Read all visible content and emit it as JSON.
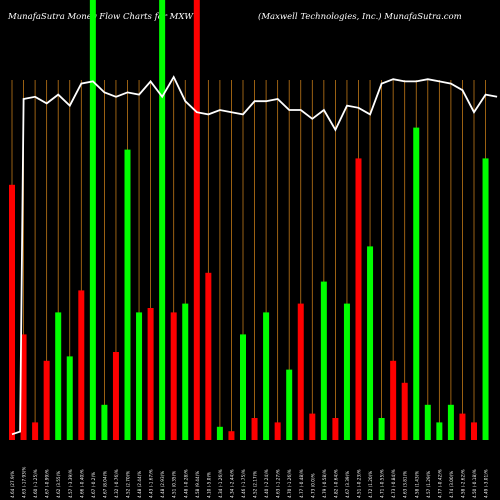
{
  "header": {
    "left": "MunafaSutra  Money Flow  Charts for MXW",
    "right": "(Maxwell Technologies, Inc.) MunafaSutra.com"
  },
  "chart_data": {
    "type": "bar",
    "title": "MunafaSutra Money Flow Charts for MXW",
    "subtitle": "(Maxwell Technologies, Inc.) MunafaSutra.com",
    "grid": true,
    "ylim": [
      0,
      100
    ],
    "categories": [
      "4.64 (27.9)%",
      "4.63 (-17.93)%",
      "4.60 (-1.25)%",
      "4.67 (-0.99)%",
      "4.62 (3.55)%",
      "4.57 (-3.39)%",
      "4.66 (-0.40)%",
      "4.67 (-0.2)%",
      "4.67 (8.04)%",
      "4.32 (-0.76)%",
      "4.52 (2.70)%",
      "4.48 (2.44)%",
      "4.43 (-1.67)%",
      "4.48 (2.93)%",
      "4.51 (0.35)%",
      "4.48 (-0.28)%",
      "4.58 (9.44)%",
      "4.10 (-5.0)%",
      "4.34 (-1.26)%",
      "4.34 (-2.44)%",
      "4.46 (-1.75)%",
      "4.52 (2.17)%",
      "4.40 (-2.24)%",
      "4.63 (-1.27)%",
      "4.70 (-1.26)%",
      "4.77 (-0.48)%",
      "4.73 (0.0)%",
      "4.79 (-0.58)%",
      "4.82 (-0.64)%",
      "4.67 (3.39)%",
      "4.51 (-0.23)%",
      "4.72 (1.20)%",
      "4.71 (-0.55)%",
      "4.73 (-0.84)%",
      "4.63 (3.81)%",
      "4.58 (1.43)%",
      "4.57 (1.29)%",
      "4.77 (-0.42)%",
      "4.74 (3.00)%",
      "4.58 (-2.62)%",
      "4.50 (-0.18)%",
      "4.49 (-3.01)%"
    ],
    "values": [
      58,
      24,
      4,
      18,
      29,
      19,
      34,
      100,
      8,
      20,
      66,
      29,
      30,
      100,
      29,
      31,
      100,
      38,
      3,
      2,
      24,
      5,
      29,
      4,
      16,
      31,
      6,
      36,
      5,
      31,
      64,
      44,
      5,
      18,
      13,
      71,
      8,
      4,
      8,
      6,
      4,
      64
    ],
    "signs": [
      "-",
      "-",
      "-",
      "-",
      "+",
      "+",
      "-",
      "+",
      "+",
      "-",
      "+",
      "+",
      "-",
      "+",
      "-",
      "+",
      "-",
      "-",
      "+",
      "-",
      "+",
      "-",
      "+",
      "-",
      "+",
      "-",
      "-",
      "+",
      "-",
      "+",
      "-",
      "+",
      "+",
      "-",
      "-",
      "+",
      "+",
      "+",
      "+",
      "-",
      "-",
      "+"
    ],
    "line": [
      {
        "x": 0,
        "y": 1.3
      },
      {
        "x": 0.7,
        "y": 1.9
      },
      {
        "x": 1,
        "y": 77.5
      },
      {
        "x": 2,
        "y": 78
      },
      {
        "x": 3,
        "y": 76.5
      },
      {
        "x": 4,
        "y": 78.5
      },
      {
        "x": 5,
        "y": 76
      },
      {
        "x": 6,
        "y": 81
      },
      {
        "x": 7,
        "y": 81.5
      },
      {
        "x": 8,
        "y": 79
      },
      {
        "x": 9,
        "y": 78
      },
      {
        "x": 10,
        "y": 79
      },
      {
        "x": 11,
        "y": 78.5
      },
      {
        "x": 12,
        "y": 81.5
      },
      {
        "x": 13,
        "y": 78
      },
      {
        "x": 14,
        "y": 82.5
      },
      {
        "x": 15,
        "y": 77
      },
      {
        "x": 16,
        "y": 74.5
      },
      {
        "x": 17,
        "y": 74
      },
      {
        "x": 18,
        "y": 75
      },
      {
        "x": 19,
        "y": 74.5
      },
      {
        "x": 20,
        "y": 74
      },
      {
        "x": 21,
        "y": 77
      },
      {
        "x": 22,
        "y": 77
      },
      {
        "x": 23,
        "y": 77.5
      },
      {
        "x": 24,
        "y": 75
      },
      {
        "x": 25,
        "y": 75
      },
      {
        "x": 26,
        "y": 73
      },
      {
        "x": 27,
        "y": 75
      },
      {
        "x": 28,
        "y": 70.5
      },
      {
        "x": 29,
        "y": 76
      },
      {
        "x": 30,
        "y": 75.5
      },
      {
        "x": 31,
        "y": 74
      },
      {
        "x": 32,
        "y": 81
      },
      {
        "x": 33,
        "y": 82
      },
      {
        "x": 34,
        "y": 81.5
      },
      {
        "x": 35,
        "y": 81.5
      },
      {
        "x": 36,
        "y": 82
      },
      {
        "x": 37,
        "y": 81.5
      },
      {
        "x": 38,
        "y": 81
      },
      {
        "x": 39,
        "y": 79.5
      },
      {
        "x": 40,
        "y": 74.5
      },
      {
        "x": 41,
        "y": 78.5
      },
      {
        "x": 42,
        "y": 78
      }
    ],
    "colors": {
      "background": "#000000",
      "up": "#00ff00",
      "down": "#ff0000",
      "grid": "#c07818",
      "line": "#ffffff",
      "text": "#ffffff"
    }
  }
}
